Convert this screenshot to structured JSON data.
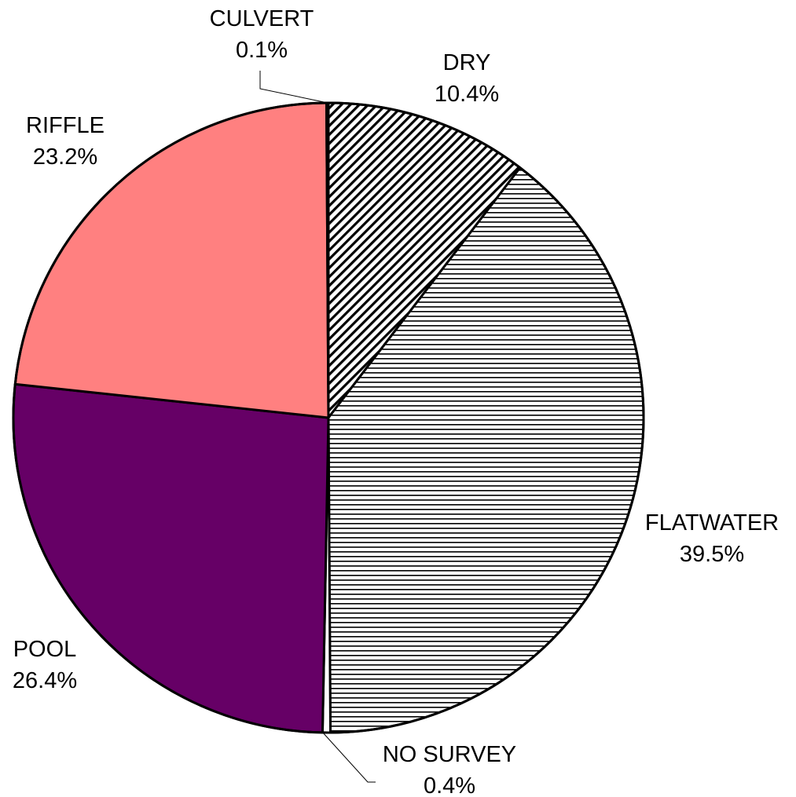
{
  "chart_data": {
    "type": "pie",
    "title": "",
    "start_angle_deg": 0,
    "direction": "clockwise",
    "slices": [
      {
        "label": "DRY",
        "value": 10.4,
        "percent_label": "10.4%",
        "fill": "pattern-diagonal",
        "color": "#000000"
      },
      {
        "label": "FLATWATER",
        "value": 39.5,
        "percent_label": "39.5%",
        "fill": "pattern-horizontal",
        "color": "#000000"
      },
      {
        "label": "NO SURVEY",
        "value": 0.4,
        "percent_label": "0.4%",
        "fill": "solid",
        "color": "#FFFFFF"
      },
      {
        "label": "POOL",
        "value": 26.4,
        "percent_label": "26.4%",
        "fill": "solid",
        "color": "#660066"
      },
      {
        "label": "RIFFLE",
        "value": 23.2,
        "percent_label": "23.2%",
        "fill": "solid",
        "color": "#FF8080"
      },
      {
        "label": "CULVERT",
        "value": 0.1,
        "percent_label": "0.1%",
        "fill": "solid",
        "color": "#FFFFFF"
      }
    ],
    "data_labels": "category-and-percent",
    "legend": "none"
  }
}
